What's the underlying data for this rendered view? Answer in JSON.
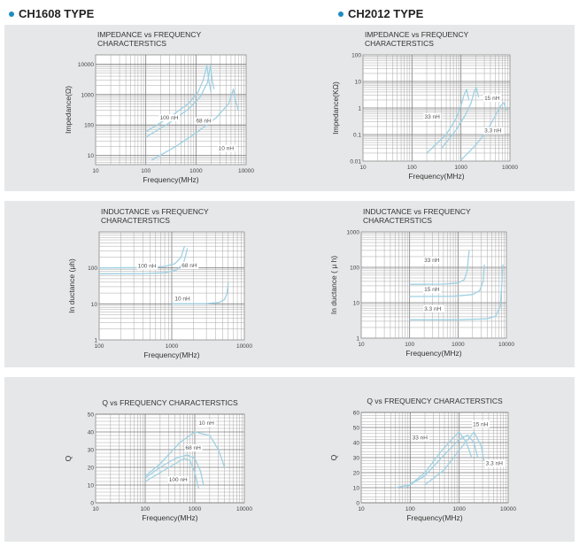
{
  "headers": [
    {
      "text": "CH1608 TYPE",
      "color": "#1e8bc3"
    },
    {
      "text": "CH2012 TYPE",
      "color": "#1e8bc3"
    }
  ],
  "colors": {
    "panel": "#e6e7e8",
    "plot": "#ffffff",
    "grid": "#a8a8a8",
    "curve": "#9fd1e3"
  },
  "chart_data": [
    {
      "type": "line",
      "title": "IMPEDANCE vs FREQUENCY\nCHARACTERSTICS",
      "xlabel": "Frequency(MHz)",
      "ylabel": "Impedance(Ω)",
      "xscale": "log",
      "yscale": "log",
      "xlim": [
        10,
        10000
      ],
      "ylim": [
        5,
        20000
      ],
      "xticks": [
        [
          "10",
          10
        ],
        [
          "100",
          100
        ],
        [
          "1000",
          1000
        ],
        [
          "10000",
          10000
        ]
      ],
      "yticks": [
        [
          "10",
          10
        ],
        [
          "100",
          100
        ],
        [
          "1000",
          1000
        ],
        [
          "10000",
          10000
        ]
      ],
      "series": [
        {
          "name": "100 nH",
          "x": [
            100,
            300,
            700,
            1100,
            1400,
            1650,
            1800,
            2000
          ],
          "y": [
            60,
            180,
            500,
            1200,
            3000,
            9000,
            3000,
            1200
          ]
        },
        {
          "name": "68 nH",
          "x": [
            100,
            300,
            700,
            1200,
            1700,
            1950,
            2100,
            2300
          ],
          "y": [
            40,
            120,
            330,
            800,
            2500,
            9000,
            3000,
            1500
          ]
        },
        {
          "name": "10 nH",
          "x": [
            130,
            400,
            1000,
            2500,
            4500,
            5600,
            6200,
            7000
          ],
          "y": [
            7,
            20,
            55,
            170,
            500,
            1500,
            600,
            300
          ]
        }
      ],
      "annotations": [
        [
          "100 nH",
          190,
          150
        ],
        [
          "68 nH",
          1000,
          120
        ],
        [
          "10 nH",
          2800,
          15
        ]
      ]
    },
    {
      "type": "line",
      "title": "IMPEDANCE vs FREQUENCY\nCHARACTERSTICS",
      "xlabel": "Frequency(MHz)",
      "ylabel": "Impedance(KΩ)",
      "xscale": "log",
      "yscale": "log",
      "xlim": [
        10,
        10000
      ],
      "ylim": [
        0.01,
        100
      ],
      "xticks": [
        [
          "10",
          10
        ],
        [
          "100",
          100
        ],
        [
          "1000",
          1000
        ],
        [
          "10000",
          10000
        ]
      ],
      "yticks": [
        [
          "0.01",
          0.01
        ],
        [
          "0.1",
          0.1
        ],
        [
          "1",
          1
        ],
        [
          "10",
          10
        ],
        [
          "100",
          100
        ]
      ],
      "series": [
        {
          "name": "33 nH",
          "x": [
            200,
            500,
            800,
            1000,
            1150,
            1300,
            1450
          ],
          "y": [
            0.02,
            0.1,
            0.4,
            1.2,
            3,
            5,
            2
          ]
        },
        {
          "name": "15 nH",
          "x": [
            400,
            800,
            1200,
            1600,
            1850,
            2050,
            2300
          ],
          "y": [
            0.03,
            0.15,
            0.5,
            1.5,
            4,
            6,
            2.5
          ]
        },
        {
          "name": "3.3 nH",
          "x": [
            1000,
            2000,
            3500,
            5000,
            6500,
            7500,
            8500
          ],
          "y": [
            0.011,
            0.04,
            0.15,
            0.5,
            1.2,
            1.6,
            0.8
          ]
        }
      ],
      "annotations": [
        [
          "33 nH",
          180,
          0.4
        ],
        [
          "15 nH",
          3000,
          2
        ],
        [
          "3.3 nH",
          3000,
          0.12
        ]
      ]
    },
    {
      "type": "line",
      "title": "INDUCTANCE vs FREQUENCY\nCHARACTERSTICS",
      "xlabel": "Frequency(MHz)",
      "ylabel": "In ductance (μh)",
      "xscale": "log",
      "yscale": "log",
      "xlim": [
        100,
        10000
      ],
      "ylim": [
        1,
        1000
      ],
      "xticks": [
        [
          "100",
          100
        ],
        [
          "1000",
          1000
        ],
        [
          "10000",
          10000
        ]
      ],
      "yticks": [
        [
          "1",
          1
        ],
        [
          "10",
          10
        ],
        [
          "100",
          100
        ]
      ],
      "series": [
        {
          "name": "100 nH",
          "x": [
            100,
            400,
            800,
            1100,
            1350,
            1500
          ],
          "y": [
            100,
            102,
            110,
            130,
            200,
            400
          ]
        },
        {
          "name": "68 nH",
          "x": [
            100,
            400,
            800,
            1150,
            1450,
            1650
          ],
          "y": [
            68,
            69,
            74,
            86,
            130,
            350
          ]
        },
        {
          "name": "10 nH",
          "x": [
            1000,
            3000,
            4500,
            5300,
            5800,
            6000
          ],
          "y": [
            10,
            10.2,
            11,
            13,
            20,
            40
          ]
        }
      ],
      "annotations": [
        [
          "100 nH",
          340,
          100
        ],
        [
          "68 nH",
          1370,
          105
        ],
        [
          "10 nH",
          1100,
          12.5
        ]
      ]
    },
    {
      "type": "line",
      "title": "INDUCTANCE vs FREQUENCY\nCHARACTERSTICS",
      "xlabel": "Frequency(MHz)",
      "ylabel": "In ductance ( μ h)",
      "xscale": "log",
      "yscale": "log",
      "xlim": [
        10,
        10000
      ],
      "ylim": [
        1,
        1000
      ],
      "xticks": [
        [
          "10",
          10
        ],
        [
          "100",
          100
        ],
        [
          "1000",
          1000
        ],
        [
          "10000",
          10000
        ]
      ],
      "yticks": [
        [
          "1",
          1
        ],
        [
          "10",
          10
        ],
        [
          "100",
          100
        ],
        [
          "1000",
          1000
        ]
      ],
      "series": [
        {
          "name": "33 nH",
          "x": [
            100,
            500,
            1000,
            1350,
            1550,
            1700
          ],
          "y": [
            33,
            33.5,
            36,
            45,
            80,
            300
          ]
        },
        {
          "name": "15 nH",
          "x": [
            100,
            800,
            2000,
            2800,
            3300,
            3500
          ],
          "y": [
            15,
            15.2,
            17,
            22,
            40,
            120
          ]
        },
        {
          "name": "3.3 nH",
          "x": [
            100,
            1000,
            4000,
            6000,
            7500,
            8500
          ],
          "y": [
            3.3,
            3.3,
            3.5,
            4.2,
            8,
            120
          ]
        }
      ],
      "annotations": [
        [
          "33 nH",
          200,
          140
        ],
        [
          "15 nH",
          200,
          21
        ],
        [
          "3.3 nH",
          200,
          6
        ]
      ]
    },
    {
      "type": "line",
      "title": "Q vs FREQUENCY CHARACTERSTICS",
      "xlabel": "Frequency(MHz)",
      "ylabel": "Q",
      "xscale": "log",
      "yscale": "linear",
      "xlim": [
        10,
        10000
      ],
      "ylim": [
        0,
        50
      ],
      "xticks": [
        [
          "10",
          10
        ],
        [
          "100",
          100
        ],
        [
          "1000",
          1000
        ],
        [
          "10000",
          10000
        ]
      ],
      "yticks": [
        [
          "0",
          0
        ],
        [
          "10",
          10
        ],
        [
          "20",
          20
        ],
        [
          "30",
          30
        ],
        [
          "40",
          40
        ],
        [
          "50",
          50
        ]
      ],
      "series": [
        {
          "name": "10 nH",
          "x": [
            100,
            200,
            500,
            1000,
            2000,
            3000,
            4000
          ],
          "y": [
            15,
            22,
            34,
            40,
            38,
            30,
            20
          ]
        },
        {
          "name": "68 nH",
          "x": [
            100,
            200,
            400,
            700,
            1000,
            1300,
            1500
          ],
          "y": [
            14,
            20,
            25,
            27,
            25,
            18,
            10
          ]
        },
        {
          "name": "100 nH",
          "x": [
            100,
            200,
            400,
            600,
            800,
            1000,
            1200
          ],
          "y": [
            12,
            17,
            22,
            25,
            24,
            17,
            8
          ]
        }
      ],
      "annotations": [
        [
          "10 nH",
          1200,
          44
        ],
        [
          "68 nH",
          650,
          30
        ],
        [
          "100 nH",
          300,
          12
        ]
      ]
    },
    {
      "type": "line",
      "title": "Q vs FREQUENCY CHARACTERSTICS",
      "xlabel": "Frequency(MHz)",
      "ylabel": "Q",
      "xscale": "log",
      "yscale": "linear",
      "xlim": [
        10,
        10000
      ],
      "ylim": [
        0,
        60
      ],
      "xticks": [
        [
          "10",
          10
        ],
        [
          "100",
          100
        ],
        [
          "1000",
          1000
        ],
        [
          "10000",
          10000
        ]
      ],
      "yticks": [
        [
          "0",
          0
        ],
        [
          "10",
          10
        ],
        [
          "20",
          20
        ],
        [
          "30",
          30
        ],
        [
          "40",
          40
        ],
        [
          "50",
          50
        ],
        [
          "60",
          60
        ]
      ],
      "series": [
        {
          "name": "33 nH",
          "x": [
            50,
            100,
            200,
            400,
            700,
            1000,
            1400,
            1800
          ],
          "y": [
            10,
            12,
            20,
            33,
            42,
            47,
            40,
            30
          ]
        },
        {
          "name": "15 nH",
          "x": [
            80,
            200,
            500,
            1000,
            1500,
            2000,
            2400
          ],
          "y": [
            10,
            18,
            32,
            42,
            45,
            40,
            30
          ]
        },
        {
          "name": "3.3 nH",
          "x": [
            200,
            500,
            1000,
            2000,
            2800,
            3200
          ],
          "y": [
            12,
            22,
            35,
            47,
            38,
            28
          ]
        }
      ],
      "annotations": [
        [
          "33 nH",
          110,
          42
        ],
        [
          "15 nH",
          1900,
          51
        ],
        [
          "3.3 nH",
          3500,
          25
        ]
      ]
    }
  ]
}
